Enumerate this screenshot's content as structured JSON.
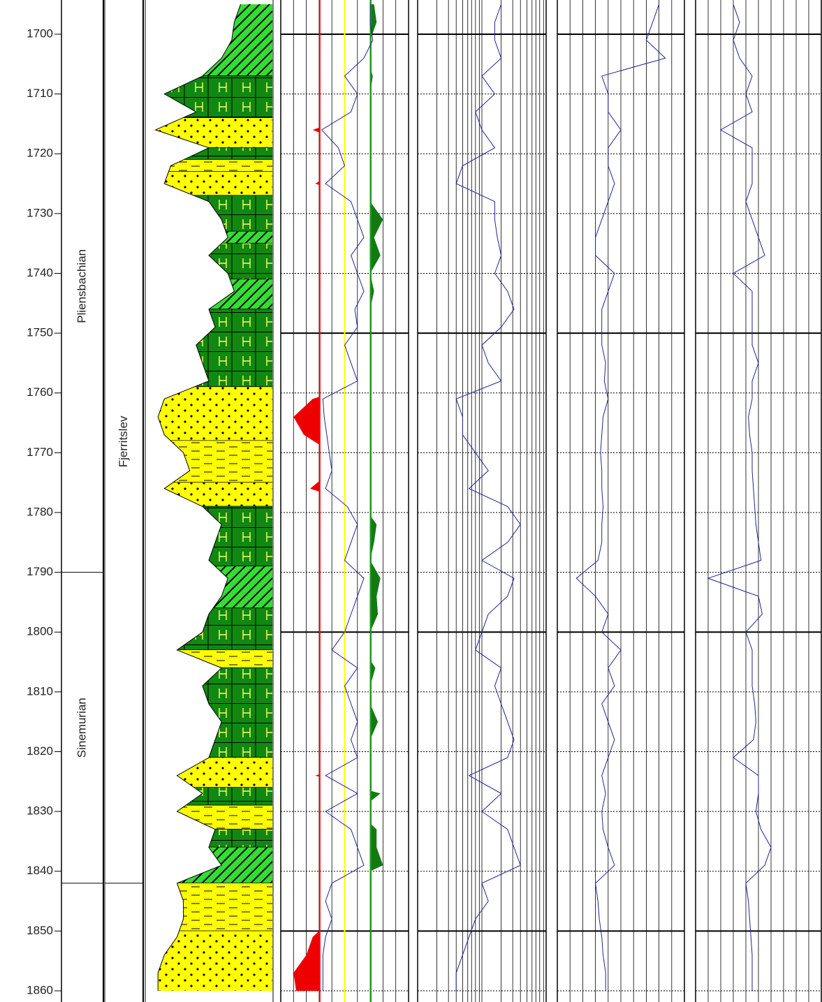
{
  "chart_data": {
    "type": "well_log",
    "ylim": [
      1694.28,
      1861.87
    ],
    "yticks": [
      1700,
      1710,
      1720,
      1730,
      1740,
      1750,
      1760,
      1770,
      1780,
      1790,
      1800,
      1810,
      1820,
      1830,
      1840,
      1850,
      1860
    ],
    "major_grid_every": 50,
    "depth": [
      1695,
      1698,
      1701,
      1704,
      1707,
      1710,
      1713,
      1716,
      1719,
      1722,
      1725,
      1728,
      1731,
      1734,
      1737,
      1740,
      1743,
      1746,
      1749,
      1752,
      1755,
      1758,
      1761,
      1764,
      1767,
      1770,
      1773,
      1776,
      1779,
      1782,
      1785,
      1788,
      1791,
      1794,
      1797,
      1800,
      1803,
      1806,
      1809,
      1812,
      1815,
      1818,
      1821,
      1824,
      1827,
      1830,
      1833,
      1836,
      1839,
      1842,
      1845,
      1848,
      1851,
      1854,
      1857,
      1860
    ],
    "stages": [
      {
        "name": "Pliensbachian",
        "base": 1790
      },
      {
        "name": "Sinemurian",
        "base": 1842
      }
    ],
    "formations": [
      {
        "name": "Fjerritslev",
        "base": 1842
      }
    ],
    "lithology": {
      "xlim": [
        0,
        10
      ],
      "values": [
        7.5,
        7.0,
        6.8,
        6.0,
        4.5,
        1.5,
        4.0,
        0.8,
        5.0,
        2.0,
        1.5,
        5.0,
        6.0,
        6.5,
        5.0,
        6.5,
        7.0,
        5.0,
        5.5,
        4.0,
        4.5,
        5.0,
        1.5,
        1.0,
        1.5,
        3.0,
        3.5,
        1.5,
        4.5,
        6.0,
        5.5,
        5.0,
        6.5,
        6.0,
        5.0,
        4.5,
        2.5,
        6.0,
        4.5,
        5.0,
        6.0,
        5.5,
        5.0,
        2.5,
        4.5,
        2.5,
        5.5,
        5.0,
        6.0,
        2.5,
        3.0,
        3.0,
        2.5,
        1.5,
        1.0,
        1.0
      ],
      "intervals": [
        {
          "base": 1707,
          "color": "#33dd33",
          "pattern": "hatch"
        },
        {
          "base": 1714,
          "color": "#118811",
          "pattern": "h"
        },
        {
          "base": 1719,
          "color": "#ffff00",
          "pattern": "dots"
        },
        {
          "base": 1721,
          "color": "#118811",
          "pattern": "h"
        },
        {
          "base": 1723,
          "color": "#ffff00",
          "pattern": "dashes"
        },
        {
          "base": 1727,
          "color": "#ffff00",
          "pattern": "dots"
        },
        {
          "base": 1733,
          "color": "#118811",
          "pattern": "h"
        },
        {
          "base": 1735,
          "color": "#33dd33",
          "pattern": "hatch"
        },
        {
          "base": 1741,
          "color": "#118811",
          "pattern": "h"
        },
        {
          "base": 1746,
          "color": "#33dd33",
          "pattern": "hatch"
        },
        {
          "base": 1759,
          "color": "#118811",
          "pattern": "h"
        },
        {
          "base": 1768,
          "color": "#ffff00",
          "pattern": "dots"
        },
        {
          "base": 1775,
          "color": "#ffff00",
          "pattern": "dashes"
        },
        {
          "base": 1779,
          "color": "#ffff00",
          "pattern": "dots"
        },
        {
          "base": 1789,
          "color": "#118811",
          "pattern": "h"
        },
        {
          "base": 1796,
          "color": "#33dd33",
          "pattern": "hatch"
        },
        {
          "base": 1803,
          "color": "#118811",
          "pattern": "h"
        },
        {
          "base": 1806,
          "color": "#ffff00",
          "pattern": "dashes"
        },
        {
          "base": 1821,
          "color": "#118811",
          "pattern": "h"
        },
        {
          "base": 1826,
          "color": "#ffff00",
          "pattern": "dots"
        },
        {
          "base": 1829,
          "color": "#118811",
          "pattern": "h"
        },
        {
          "base": 1833,
          "color": "#ffff00",
          "pattern": "dashes"
        },
        {
          "base": 1836,
          "color": "#118811",
          "pattern": "h"
        },
        {
          "base": 1842,
          "color": "#33dd33",
          "pattern": "hatch"
        },
        {
          "base": 1850,
          "color": "#ffff00",
          "pattern": "dashes"
        },
        {
          "base": 1862,
          "color": "#ffff00",
          "pattern": "dots"
        }
      ]
    },
    "tracks": [
      {
        "xlim": [
          0,
          10
        ],
        "xticks": [
          0,
          1,
          2,
          3,
          4,
          5,
          6,
          7,
          8,
          9,
          10
        ],
        "reference_lines": [
          {
            "value": 3.05,
            "color": "#ff0000"
          },
          {
            "value": 5.0,
            "color": "#ffff00"
          },
          {
            "value": 7.05,
            "color": "#1a9a1a"
          }
        ],
        "series": [
          {
            "color": "#22229a",
            "values": [
              7.0,
              7.0,
              7.2,
              6.5,
              5.0,
              6.0,
              5.5,
              3.2,
              4.5,
              5.0,
              3.5,
              5.5,
              6.0,
              6.5,
              5.5,
              6.0,
              6.5,
              5.8,
              6.0,
              5.0,
              5.5,
              6.0,
              3.3,
              3.4,
              3.6,
              3.8,
              4.0,
              3.5,
              5.2,
              6.0,
              5.5,
              5.0,
              6.5,
              6.0,
              5.5,
              5.0,
              4.0,
              6.0,
              5.0,
              5.5,
              6.0,
              5.5,
              6.0,
              3.5,
              6.0,
              3.5,
              5.5,
              6.0,
              6.5,
              4.0,
              3.5,
              4.0,
              3.5,
              3.3,
              3.3,
              3.3
            ]
          }
        ],
        "shading": {
          "values": [
            7.3,
            7.5,
            7.0,
            6.8,
            7.2,
            7.0,
            6.5,
            2.5,
            6.0,
            5.0,
            2.7,
            7.0,
            8.0,
            7.3,
            7.8,
            7.0,
            7.3,
            7.0,
            7.0,
            7.0,
            6.8,
            7.0,
            2.5,
            1.0,
            1.8,
            4.0,
            4.0,
            2.3,
            6.5,
            7.5,
            7.3,
            7.0,
            7.8,
            7.5,
            7.6,
            7.0,
            6.5,
            7.4,
            7.0,
            7.0,
            7.6,
            7.0,
            7.0,
            2.7,
            7.8,
            6.0,
            7.5,
            7.5,
            8.0,
            5.0,
            4.5,
            4.0,
            2.5,
            2.0,
            1.0,
            1.2
          ],
          "areas": [
            {
              "ref": 0,
              "side": "left",
              "color": "#ee0000"
            },
            {
              "ref": 2,
              "side": "right",
              "color": "#137a13"
            }
          ]
        }
      },
      {
        "xlim": [
          0,
          10
        ],
        "xticks": [
          0,
          1.5,
          2.4,
          3.0,
          3.5,
          3.9,
          4.2,
          4.5,
          4.8,
          5.0,
          6.5,
          7.4,
          8.0,
          8.5,
          8.9,
          9.2,
          9.5,
          9.8,
          10
        ],
        "series": [
          {
            "color": "#22229a",
            "values": [
              6.5,
              6.0,
              6.0,
              6.5,
              5.0,
              6.0,
              4.5,
              5.0,
              6.0,
              3.5,
              3.0,
              6.0,
              6.0,
              6.2,
              6.5,
              6.0,
              7.0,
              7.5,
              6.5,
              5.0,
              5.5,
              6.5,
              3.0,
              3.5,
              3.5,
              4.5,
              5.5,
              4.0,
              7.0,
              8.0,
              7.0,
              5.0,
              7.5,
              7.0,
              5.5,
              5.0,
              4.5,
              6.5,
              6.0,
              6.5,
              7.0,
              7.5,
              7.0,
              4.0,
              6.5,
              5.0,
              7.0,
              7.5,
              8.0,
              5.0,
              5.5,
              4.5,
              4.0,
              3.5,
              3.0,
              3.0
            ]
          }
        ]
      },
      {
        "xlim": [
          0,
          10
        ],
        "xticks": [
          0,
          1,
          2,
          3,
          4,
          5,
          6,
          7,
          8,
          9,
          10
        ],
        "series": [
          {
            "color": "#22229a",
            "values": [
              8.0,
              7.5,
              7.0,
              8.5,
              3.5,
              4.0,
              4.0,
              5.0,
              4.0,
              4.0,
              4.5,
              4.0,
              3.5,
              3.0,
              3.0,
              4.5,
              4.0,
              3.5,
              3.5,
              3.5,
              3.8,
              3.7,
              4.0,
              3.6,
              3.5,
              3.4,
              3.5,
              3.5,
              3.6,
              3.5,
              3.5,
              3.2,
              1.5,
              3.0,
              4.0,
              3.5,
              5.0,
              4.0,
              4.5,
              3.5,
              4.0,
              4.5,
              4.0,
              3.5,
              3.8,
              3.5,
              3.6,
              4.0,
              4.5,
              3.0,
              3.2,
              3.3,
              3.5,
              3.6,
              3.8,
              3.8
            ]
          }
        ]
      },
      {
        "xlim": [
          0,
          10
        ],
        "xticks": [
          0,
          1,
          2,
          3,
          4,
          5,
          6,
          7,
          8,
          9,
          10
        ],
        "series": [
          {
            "color": "#22229a",
            "values": [
              3.0,
              3.5,
              3.0,
              3.5,
              4.5,
              4.0,
              4.5,
              2.0,
              4.5,
              4.5,
              4.5,
              4.0,
              4.5,
              5.0,
              5.5,
              3.0,
              4.5,
              4.5,
              4.5,
              4.5,
              5.0,
              4.5,
              4.5,
              4.2,
              4.3,
              4.5,
              4.5,
              4.6,
              4.7,
              4.8,
              5.0,
              5.2,
              1.0,
              5.0,
              5.3,
              4.0,
              4.5,
              4.5,
              4.5,
              4.7,
              4.8,
              4.6,
              3.0,
              5.0,
              5.0,
              4.8,
              5.2,
              6.0,
              5.5,
              4.0,
              4.2,
              4.3,
              4.4,
              4.5,
              4.5,
              4.5
            ]
          }
        ]
      }
    ]
  }
}
